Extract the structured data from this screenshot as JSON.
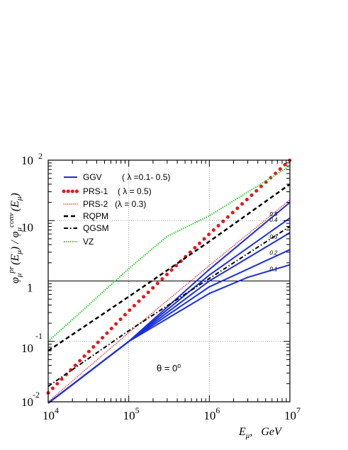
{
  "chart_data": {
    "type": "line",
    "title": "",
    "xlabel": {
      "main": "E",
      "sub": "μ",
      "comma": ",",
      "unit": "GeV"
    },
    "ylabel": {
      "phi": "φ",
      "mu": "μ",
      "pr": "pr",
      "mid": "(E",
      "close": ") / ",
      "conv": "conv",
      "tail": "(E",
      "end": ")"
    },
    "xscale": "log",
    "yscale": "log",
    "xlim": [
      10000,
      10000000
    ],
    "ylim": [
      0.01,
      100
    ],
    "grid": "dotted at decades",
    "reference_line_y": 1,
    "x_ticks": [
      {
        "base": "10",
        "exp": "4",
        "value": 10000
      },
      {
        "base": "10",
        "exp": "5",
        "value": 100000
      },
      {
        "base": "10",
        "exp": "6",
        "value": 1000000
      },
      {
        "base": "10",
        "exp": "7",
        "value": 10000000
      }
    ],
    "y_ticks": [
      {
        "base": "10",
        "exp": "-2",
        "value": 0.01
      },
      {
        "base": "10",
        "exp": "-1",
        "value": 0.1
      },
      {
        "base": "1",
        "exp": "",
        "value": 1
      },
      {
        "base": "10",
        "exp": "",
        "value": 10
      },
      {
        "base": "10",
        "exp": "2",
        "value": 100
      }
    ],
    "legend_position": "top-left",
    "legend": [
      {
        "label": "GGV",
        "extra": "( λ =0.1- 0.5)",
        "series": "GGV"
      },
      {
        "label": "PRS-1",
        "extra": "( λ = 0.5)",
        "series": "PRS-1"
      },
      {
        "label": "PRS-2",
        "extra": "(λ = 0.3)",
        "series": "PRS-2"
      },
      {
        "label": "RQPM",
        "extra": "",
        "series": "RQPM"
      },
      {
        "label": "QGSM",
        "extra": "",
        "series": "QGSM"
      },
      {
        "label": "VZ",
        "extra": "",
        "series": "VZ"
      }
    ],
    "annotation": {
      "theta": "θ",
      "eq": " = 0",
      "deg": "o"
    },
    "series": [
      {
        "name": "GGV",
        "lambda": "0.1",
        "style": "solid",
        "color": "#1a2ee0",
        "width": 2,
        "x": [
          10000,
          100000,
          1000000,
          3000000,
          10000000
        ],
        "y": [
          0.0095,
          0.1,
          0.62,
          1.15,
          1.85
        ]
      },
      {
        "name": "GGV",
        "lambda": "0.2",
        "style": "solid",
        "color": "#1a2ee0",
        "width": 2,
        "x": [
          10000,
          100000,
          1000000,
          10000000
        ],
        "y": [
          0.0095,
          0.1,
          0.8,
          3.3
        ]
      },
      {
        "name": "GGV",
        "lambda": "0.3",
        "style": "solid",
        "color": "#1a2ee0",
        "width": 2,
        "x": [
          10000,
          100000,
          1000000,
          10000000
        ],
        "y": [
          0.0095,
          0.1,
          1.0,
          6.3
        ]
      },
      {
        "name": "GGV",
        "lambda": "0.4",
        "style": "solid",
        "color": "#1a2ee0",
        "width": 2,
        "x": [
          10000,
          100000,
          1000000,
          10000000
        ],
        "y": [
          0.0095,
          0.1,
          1.25,
          11.0
        ]
      },
      {
        "name": "GGV",
        "lambda": "0.5",
        "style": "solid",
        "color": "#1a2ee0",
        "width": 2,
        "x": [
          10000,
          100000,
          1000000,
          10000000
        ],
        "y": [
          0.0095,
          0.1,
          1.55,
          20.0
        ]
      },
      {
        "name": "PRS-1",
        "style": "bigdots",
        "color": "#e8171c",
        "width": 5,
        "x": [
          10000,
          100000,
          1000000,
          10000000
        ],
        "y": [
          0.014,
          0.32,
          6.0,
          100.0
        ]
      },
      {
        "name": "PRS-2",
        "style": "smalldots",
        "color": "#e8171c",
        "width": 1.4,
        "x": [
          10000,
          100000,
          1000000,
          10000000
        ],
        "y": [
          0.01,
          0.14,
          1.8,
          22.0
        ]
      },
      {
        "name": "RQPM",
        "style": "dashed",
        "color": "#000000",
        "width": 2.5,
        "x": [
          10000,
          100000,
          1000000,
          10000000
        ],
        "y": [
          0.07,
          0.55,
          4.5,
          40.0
        ]
      },
      {
        "name": "QGSM",
        "style": "dashdot",
        "color": "#000000",
        "width": 2,
        "x": [
          10000,
          100000,
          1000000,
          10000000
        ],
        "y": [
          0.018,
          0.15,
          1.1,
          8.0
        ]
      },
      {
        "name": "VZ",
        "style": "greendots",
        "color": "#1fd11f",
        "width": 2,
        "x": [
          10000,
          100000,
          300000,
          1000000,
          10000000
        ],
        "y": [
          0.1,
          1.6,
          5.5,
          12.0,
          80.0
        ]
      }
    ],
    "curve_labels": [
      {
        "text": "0.5",
        "x": 5600000,
        "y": 11.8
      },
      {
        "text": "0.4",
        "x": 5600000,
        "y": 9.5
      },
      {
        "text": "0.3",
        "x": 5600000,
        "y": 5.0
      },
      {
        "text": "0.2",
        "x": 5600000,
        "y": 2.7
      },
      {
        "text": "0.1",
        "x": 5600000,
        "y": 1.45
      }
    ]
  }
}
